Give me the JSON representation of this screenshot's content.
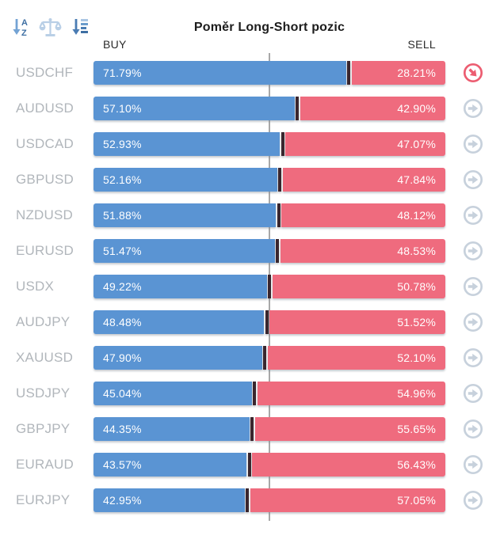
{
  "title": "Poměr Long-Short pozic",
  "columns": {
    "buy": "BUY",
    "sell": "SELL"
  },
  "toolbar": {
    "icons": [
      {
        "name": "sort-alphabetical-icon"
      },
      {
        "name": "scales-icon"
      },
      {
        "name": "sort-amount-icon"
      }
    ]
  },
  "row_action_icon": "arrow-right-circle-icon",
  "colors": {
    "buy_bar": "#5a94d3",
    "sell_bar": "#ef6b7e",
    "bar_divider": "#3a262e",
    "center_line": "#a8a8a8",
    "pair_label": "#b1b6bb",
    "action_icon_normal": "#c7d1dc",
    "action_icon_active": "#ec5d71",
    "toolbar_icon_dark": "#3e6fa3",
    "toolbar_icon_light": "#b9cfe6"
  },
  "rows": [
    {
      "pair": "USDCHF",
      "buy": 71.79,
      "sell": 28.21,
      "buy_label": "71.79%",
      "sell_label": "28.21%",
      "active": true
    },
    {
      "pair": "AUDUSD",
      "buy": 57.1,
      "sell": 42.9,
      "buy_label": "57.10%",
      "sell_label": "42.90%",
      "active": false
    },
    {
      "pair": "USDCAD",
      "buy": 52.93,
      "sell": 47.07,
      "buy_label": "52.93%",
      "sell_label": "47.07%",
      "active": false
    },
    {
      "pair": "GBPUSD",
      "buy": 52.16,
      "sell": 47.84,
      "buy_label": "52.16%",
      "sell_label": "47.84%",
      "active": false
    },
    {
      "pair": "NZDUSD",
      "buy": 51.88,
      "sell": 48.12,
      "buy_label": "51.88%",
      "sell_label": "48.12%",
      "active": false
    },
    {
      "pair": "EURUSD",
      "buy": 51.47,
      "sell": 48.53,
      "buy_label": "51.47%",
      "sell_label": "48.53%",
      "active": false
    },
    {
      "pair": "USDX",
      "buy": 49.22,
      "sell": 50.78,
      "buy_label": "49.22%",
      "sell_label": "50.78%",
      "active": false
    },
    {
      "pair": "AUDJPY",
      "buy": 48.48,
      "sell": 51.52,
      "buy_label": "48.48%",
      "sell_label": "51.52%",
      "active": false
    },
    {
      "pair": "XAUUSD",
      "buy": 47.9,
      "sell": 52.1,
      "buy_label": "47.90%",
      "sell_label": "52.10%",
      "active": false
    },
    {
      "pair": "USDJPY",
      "buy": 45.04,
      "sell": 54.96,
      "buy_label": "45.04%",
      "sell_label": "54.96%",
      "active": false
    },
    {
      "pair": "GBPJPY",
      "buy": 44.35,
      "sell": 55.65,
      "buy_label": "44.35%",
      "sell_label": "55.65%",
      "active": false
    },
    {
      "pair": "EURAUD",
      "buy": 43.57,
      "sell": 56.43,
      "buy_label": "43.57%",
      "sell_label": "56.43%",
      "active": false
    },
    {
      "pair": "EURJPY",
      "buy": 42.95,
      "sell": 57.05,
      "buy_label": "42.95%",
      "sell_label": "57.05%",
      "active": false
    }
  ],
  "chart_data": {
    "type": "bar",
    "variant": "horizontal-diverging-stacked",
    "title": "Poměr Long-Short pozic",
    "categories": [
      "USDCHF",
      "AUDUSD",
      "USDCAD",
      "GBPUSD",
      "NZDUSD",
      "EURUSD",
      "USDX",
      "AUDJPY",
      "XAUUSD",
      "USDJPY",
      "GBPJPY",
      "EURAUD",
      "EURJPY"
    ],
    "series": [
      {
        "name": "BUY",
        "color": "#5a94d3",
        "values": [
          71.79,
          57.1,
          52.93,
          52.16,
          51.88,
          51.47,
          49.22,
          48.48,
          47.9,
          45.04,
          44.35,
          43.57,
          42.95
        ]
      },
      {
        "name": "SELL",
        "color": "#ef6b7e",
        "values": [
          28.21,
          42.9,
          47.07,
          47.84,
          48.12,
          48.53,
          50.78,
          51.52,
          52.1,
          54.96,
          55.65,
          56.43,
          57.05
        ]
      }
    ],
    "unit": "%",
    "xlim": [
      0,
      100
    ],
    "reference_line": 50,
    "grid": false,
    "legend_position": "top",
    "value_labels": "inside-bars"
  }
}
